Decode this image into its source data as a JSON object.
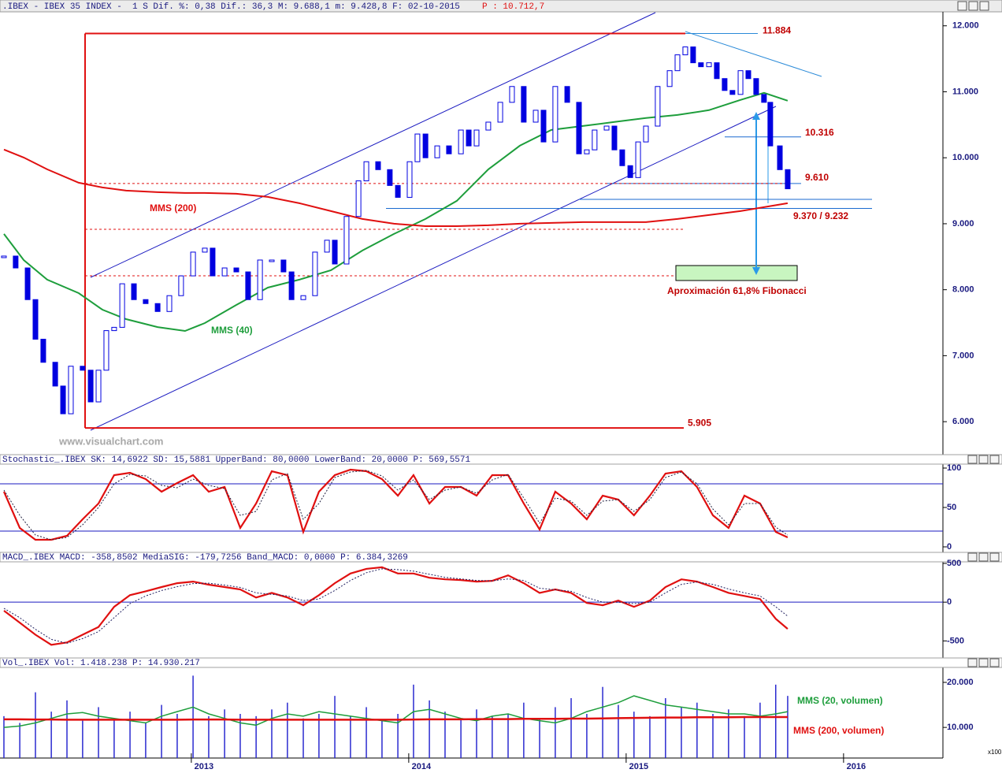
{
  "chart_data": [
    {
      "type": "candlestick",
      "title": ".IBEX - IBEX 35 INDEX -  1 S Dif. %: 0,38 Dif.: 36,3 M: 9.688,1 m: 9.428,8 F: 02-10-2015",
      "price_label": "P : 10.712,7",
      "watermark": "www.visualchart.com",
      "color": "#0000e0",
      "xlim": [
        2012.12,
        2016.457
      ],
      "ylim": [
        5500,
        12200
      ],
      "yticks": [
        {
          "value": 6000,
          "label": "6.000"
        },
        {
          "value": 7000,
          "label": "7.000"
        },
        {
          "value": 8000,
          "label": "8.000"
        },
        {
          "value": 9000,
          "label": "9.000"
        },
        {
          "value": 10000,
          "label": "10.000"
        },
        {
          "value": 11000,
          "label": "11.000"
        },
        {
          "value": 12000,
          "label": "12.000"
        }
      ],
      "x": [
        2012.138,
        2012.192,
        2012.247,
        2012.283,
        2012.319,
        2012.374,
        2012.41,
        2012.446,
        2012.5,
        2012.537,
        2012.573,
        2012.609,
        2012.645,
        2012.682,
        2012.736,
        2012.79,
        2012.845,
        2012.899,
        2012.953,
        2013.008,
        2013.062,
        2013.098,
        2013.153,
        2013.207,
        2013.261,
        2013.316,
        2013.37,
        2013.424,
        2013.461,
        2013.515,
        2013.569,
        2013.624,
        2013.66,
        2013.714,
        2013.769,
        2013.805,
        2013.859,
        2013.913,
        2013.95,
        2014.004,
        2014.04,
        2014.077,
        2014.131,
        2014.185,
        2014.24,
        2014.276,
        2014.312,
        2014.366,
        2014.421,
        2014.475,
        2014.529,
        2014.584,
        2014.62,
        2014.674,
        2014.729,
        2014.783,
        2014.819,
        2014.855,
        2014.91,
        2014.946,
        2014.982,
        2015.019,
        2015.055,
        2015.091,
        2015.145,
        2015.2,
        2015.236,
        2015.272,
        2015.308,
        2015.344,
        2015.381,
        2015.417,
        2015.453,
        2015.489,
        2015.526,
        2015.562,
        2015.598,
        2015.634,
        2015.663,
        2015.707,
        2015.743
      ],
      "values": [
        8510,
        8330,
        7850,
        7250,
        6900,
        6540,
        6120,
        6840,
        6780,
        6300,
        6780,
        7380,
        7430,
        8090,
        7850,
        7790,
        7670,
        7910,
        8210,
        8570,
        8630,
        8210,
        8330,
        8270,
        7850,
        8450,
        8450,
        8270,
        7850,
        7910,
        8570,
        8750,
        8390,
        9110,
        9650,
        9940,
        9820,
        9580,
        9400,
        9940,
        10360,
        10000,
        10180,
        10060,
        10420,
        10180,
        10420,
        10540,
        10840,
        11080,
        10540,
        10720,
        10240,
        11080,
        10840,
        10060,
        10120,
        10420,
        10480,
        10120,
        9880,
        9700,
        10240,
        10480,
        11080,
        11320,
        11560,
        11680,
        11440,
        11380,
        11440,
        11200,
        11020,
        10960,
        11320,
        11200,
        10960,
        10840,
        10180,
        9820,
        9530
      ],
      "series": [
        {
          "name": "MMS (40)",
          "color": "#1e9e3c",
          "x": [
            2012.138,
            2012.229,
            2012.337,
            2012.482,
            2012.591,
            2012.7,
            2012.845,
            2012.971,
            2013.062,
            2013.207,
            2013.352,
            2013.497,
            2013.642,
            2013.787,
            2013.932,
            2014.077,
            2014.221,
            2014.366,
            2014.511,
            2014.656,
            2014.801,
            2014.946,
            2015.091,
            2015.236,
            2015.381,
            2015.526,
            2015.634,
            2015.743
          ],
          "values": [
            8845,
            8450,
            8152,
            7948,
            7697,
            7554,
            7434,
            7375,
            7494,
            7769,
            8032,
            8152,
            8295,
            8594,
            8845,
            9072,
            9347,
            9825,
            10183,
            10422,
            10482,
            10542,
            10602,
            10649,
            10721,
            10877,
            10984,
            10865
          ]
        },
        {
          "name": "MMS (200)",
          "color": "#e01010",
          "x": [
            2012.138,
            2012.229,
            2012.337,
            2012.482,
            2012.591,
            2012.7,
            2012.845,
            2012.971,
            2013.062,
            2013.207,
            2013.352,
            2013.497,
            2013.642,
            2013.787,
            2013.932,
            2014.077,
            2014.221,
            2014.366,
            2014.511,
            2014.656,
            2014.801,
            2014.946,
            2015.091,
            2015.236,
            2015.381,
            2015.526,
            2015.634,
            2015.743
          ],
          "values": [
            10124,
            10004,
            9825,
            9622,
            9550,
            9502,
            9478,
            9466,
            9466,
            9454,
            9407,
            9311,
            9192,
            9072,
            9000,
            8964,
            8964,
            8976,
            9000,
            9012,
            9024,
            9024,
            9024,
            9072,
            9132,
            9192,
            9251,
            9311
          ]
        }
      ],
      "levels": [
        {
          "value": 11884,
          "label": "11.884"
        },
        {
          "value": 10316,
          "label": "10.316"
        },
        {
          "value": 9610,
          "label": "9.610"
        },
        {
          "values": [
            9370,
            9232
          ],
          "label": "9.370 / 9.232"
        },
        {
          "value": 5905,
          "label": "5.905"
        }
      ],
      "annotation": "Aproximación 61,8% Fibonacci"
    },
    {
      "type": "line",
      "title": "Stochastic_.IBEX SK: 14,6922 SD: 15,5881 UpperBand: 80,0000 LowerBand: 20,0000 P: 569,5571",
      "xlim": [
        2012.12,
        2016.457
      ],
      "ylim": [
        -6,
        104
      ],
      "yticks": [
        0,
        50,
        100
      ],
      "bands": [
        80,
        20
      ],
      "x": [
        2012.138,
        2012.211,
        2012.283,
        2012.356,
        2012.428,
        2012.5,
        2012.573,
        2012.645,
        2012.718,
        2012.79,
        2012.863,
        2012.935,
        2013.008,
        2013.08,
        2013.153,
        2013.225,
        2013.298,
        2013.37,
        2013.442,
        2013.515,
        2013.587,
        2013.66,
        2013.732,
        2013.805,
        2013.877,
        2013.95,
        2014.022,
        2014.095,
        2014.167,
        2014.24,
        2014.312,
        2014.384,
        2014.457,
        2014.529,
        2014.602,
        2014.674,
        2014.747,
        2014.819,
        2014.892,
        2014.964,
        2015.036,
        2015.109,
        2015.181,
        2015.254,
        2015.326,
        2015.399,
        2015.471,
        2015.544,
        2015.616,
        2015.688,
        2015.743
      ],
      "series": [
        {
          "name": "SK",
          "color": "#e01010",
          "dash": false,
          "values": [
            70,
            24,
            9,
            9,
            14,
            35,
            55,
            91,
            94,
            86,
            70,
            81,
            91,
            70,
            76,
            24,
            55,
            96,
            91,
            19,
            70,
            91,
            98,
            96,
            86,
            65,
            91,
            55,
            76,
            76,
            65,
            91,
            91,
            55,
            22,
            70,
            55,
            35,
            65,
            60,
            40,
            65,
            93,
            96,
            76,
            40,
            24,
            65,
            55,
            19,
            12
          ]
        },
        {
          "name": "SD",
          "color": "#202040",
          "dash": true,
          "values": [
            72,
            40,
            15,
            9,
            12,
            28,
            50,
            80,
            92,
            90,
            78,
            75,
            86,
            78,
            74,
            40,
            45,
            85,
            93,
            35,
            55,
            88,
            95,
            97,
            90,
            72,
            85,
            60,
            72,
            76,
            68,
            85,
            92,
            62,
            30,
            62,
            58,
            40,
            58,
            60,
            45,
            60,
            88,
            95,
            80,
            48,
            28,
            55,
            55,
            25,
            15
          ]
        }
      ]
    },
    {
      "type": "line",
      "title": "MACD_.IBEX MACD: -358,8502 MediaSIG: -179,7256 Band_MACD: 0,0000 P: 6.384,3269",
      "xlim": [
        2012.12,
        2016.457
      ],
      "ylim": [
        -720,
        500
      ],
      "yticks": [
        -500,
        0,
        500
      ],
      "bands": [
        0
      ],
      "x": [
        2012.138,
        2012.211,
        2012.283,
        2012.356,
        2012.428,
        2012.5,
        2012.573,
        2012.645,
        2012.718,
        2012.79,
        2012.863,
        2012.935,
        2013.008,
        2013.08,
        2013.153,
        2013.225,
        2013.298,
        2013.37,
        2013.442,
        2013.515,
        2013.587,
        2013.66,
        2013.732,
        2013.805,
        2013.877,
        2013.95,
        2014.022,
        2014.095,
        2014.167,
        2014.24,
        2014.312,
        2014.384,
        2014.457,
        2014.529,
        2014.602,
        2014.674,
        2014.747,
        2014.819,
        2014.892,
        2014.964,
        2015.036,
        2015.109,
        2015.181,
        2015.254,
        2015.326,
        2015.399,
        2015.471,
        2015.544,
        2015.616,
        2015.688,
        2015.743
      ],
      "series": [
        {
          "name": "MACD",
          "color": "#e01010",
          "dash": false,
          "values": [
            -110,
            -265,
            -420,
            -550,
            -520,
            -420,
            -320,
            -60,
            90,
            140,
            195,
            245,
            265,
            225,
            195,
            165,
            60,
            120,
            60,
            -40,
            90,
            245,
            370,
            430,
            450,
            370,
            370,
            315,
            295,
            285,
            265,
            275,
            345,
            245,
            120,
            165,
            120,
            -10,
            -40,
            20,
            -60,
            20,
            195,
            295,
            265,
            195,
            120,
            80,
            40,
            -215,
            -345
          ]
        },
        {
          "name": "MediaSIG",
          "color": "#202060",
          "dash": true,
          "values": [
            -80,
            -200,
            -350,
            -480,
            -530,
            -470,
            -380,
            -200,
            -20,
            80,
            150,
            200,
            240,
            245,
            220,
            190,
            120,
            100,
            80,
            20,
            40,
            150,
            280,
            380,
            430,
            420,
            400,
            360,
            320,
            300,
            280,
            275,
            300,
            280,
            180,
            160,
            140,
            60,
            0,
            0,
            -20,
            0,
            120,
            230,
            260,
            230,
            170,
            120,
            80,
            -60,
            -180
          ]
        }
      ]
    },
    {
      "type": "bar",
      "title": "Vol_.IBEX Vol: 1.418.238 P: 14.930.217",
      "unit_label": "x100",
      "color": "#2a2ad0",
      "xlim": [
        2012.12,
        2016.457
      ],
      "xticks": [
        2013,
        2014,
        2015,
        2016
      ],
      "ylim": [
        3200,
        22800
      ],
      "yticks": [
        {
          "value": 10000,
          "label": "10.000"
        },
        {
          "value": 20000,
          "label": "20.000"
        }
      ],
      "x": [
        2012.138,
        2012.211,
        2012.283,
        2012.356,
        2012.428,
        2012.5,
        2012.573,
        2012.645,
        2012.718,
        2012.79,
        2012.863,
        2012.935,
        2013.008,
        2013.08,
        2013.153,
        2013.225,
        2013.298,
        2013.37,
        2013.442,
        2013.515,
        2013.587,
        2013.66,
        2013.732,
        2013.805,
        2013.877,
        2013.95,
        2014.022,
        2014.095,
        2014.167,
        2014.24,
        2014.312,
        2014.384,
        2014.457,
        2014.529,
        2014.602,
        2014.674,
        2014.747,
        2014.819,
        2014.892,
        2014.964,
        2015.036,
        2015.109,
        2015.181,
        2015.254,
        2015.326,
        2015.399,
        2015.471,
        2015.544,
        2015.616,
        2015.688,
        2015.743
      ],
      "values": [
        12500,
        11000,
        17800,
        13500,
        16000,
        11500,
        14500,
        12000,
        13500,
        11000,
        15000,
        13000,
        21500,
        12500,
        14000,
        13000,
        12500,
        14000,
        15500,
        12000,
        13000,
        17000,
        12500,
        14500,
        11500,
        13000,
        19500,
        16000,
        13500,
        12000,
        14000,
        12500,
        13000,
        15500,
        12000,
        14500,
        16500,
        13000,
        19000,
        15000,
        13500,
        12500,
        16500,
        14500,
        15500,
        13000,
        14000,
        12500,
        15500,
        19500,
        17000
      ],
      "series": [
        {
          "name": "MMS (20, volumen)",
          "color": "#1e9e3c",
          "values": [
            10000,
            10300,
            11000,
            12000,
            13000,
            13300,
            12500,
            12000,
            11500,
            11000,
            12500,
            13500,
            14500,
            13000,
            12000,
            11000,
            10500,
            12000,
            13000,
            12500,
            13500,
            13000,
            12500,
            12000,
            11500,
            11000,
            13500,
            14000,
            13000,
            12000,
            11500,
            12500,
            13000,
            12000,
            11500,
            11000,
            12000,
            13500,
            14500,
            15500,
            17000,
            16000,
            15000,
            14500,
            14000,
            13500,
            13000,
            13000,
            12500,
            13000,
            13500
          ]
        },
        {
          "name": "MMS (200, volumen)",
          "color": "#e01010",
          "values": [
            11800,
            11800,
            11750,
            11750,
            11700,
            11700,
            11700,
            11700,
            11700,
            11700,
            11700,
            11700,
            11750,
            11750,
            11750,
            11700,
            11700,
            11700,
            11700,
            11700,
            11700,
            11700,
            11700,
            11700,
            11700,
            11700,
            11750,
            11800,
            11800,
            11800,
            11850,
            11850,
            11850,
            11900,
            11900,
            11900,
            11950,
            11950,
            12000,
            12050,
            12100,
            12150,
            12200,
            12200,
            12250,
            12250,
            12250,
            12300,
            12300,
            12300,
            12300
          ]
        }
      ]
    }
  ]
}
